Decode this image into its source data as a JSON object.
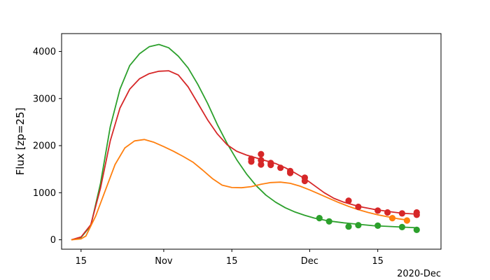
{
  "chart_data": {
    "type": "line",
    "title": "",
    "xlabel": "",
    "ylabel": "Flux [zp=25]",
    "x_offset_label": "2020-Dec",
    "xlim": [
      "2020-10-11",
      "2020-12-28"
    ],
    "ylim": [
      -200,
      4380
    ],
    "x_ticks": [
      {
        "date": "2020-10-15",
        "label": "15"
      },
      {
        "date": "2020-11-01",
        "label": "Nov"
      },
      {
        "date": "2020-11-15",
        "label": "15"
      },
      {
        "date": "2020-12-01",
        "label": "Dec"
      },
      {
        "date": "2020-12-15",
        "label": "15"
      }
    ],
    "y_ticks": [
      0,
      1000,
      2000,
      3000,
      4000
    ],
    "grid": false,
    "series": [
      {
        "color": "#2ca02c",
        "curve": [
          [
            "2020-10-13",
            0
          ],
          [
            "2020-10-15",
            50
          ],
          [
            "2020-10-17",
            300
          ],
          [
            "2020-10-19",
            1200
          ],
          [
            "2020-10-21",
            2400
          ],
          [
            "2020-10-23",
            3200
          ],
          [
            "2020-10-25",
            3700
          ],
          [
            "2020-10-27",
            3950
          ],
          [
            "2020-10-29",
            4100
          ],
          [
            "2020-10-31",
            4150
          ],
          [
            "2020-11-02",
            4080
          ],
          [
            "2020-11-04",
            3900
          ],
          [
            "2020-11-06",
            3650
          ],
          [
            "2020-11-08",
            3300
          ],
          [
            "2020-11-10",
            2900
          ],
          [
            "2020-11-12",
            2450
          ],
          [
            "2020-11-14",
            2050
          ],
          [
            "2020-11-16",
            1700
          ],
          [
            "2020-11-18",
            1400
          ],
          [
            "2020-11-20",
            1150
          ],
          [
            "2020-11-22",
            950
          ],
          [
            "2020-11-24",
            800
          ],
          [
            "2020-11-26",
            680
          ],
          [
            "2020-11-28",
            590
          ],
          [
            "2020-11-30",
            520
          ],
          [
            "2020-12-02",
            460
          ],
          [
            "2020-12-05",
            400
          ],
          [
            "2020-12-08",
            360
          ],
          [
            "2020-12-11",
            330
          ],
          [
            "2020-12-14",
            300
          ],
          [
            "2020-12-17",
            285
          ],
          [
            "2020-12-20",
            270
          ],
          [
            "2020-12-23",
            255
          ]
        ],
        "points": [
          [
            "2020-12-03",
            460
          ],
          [
            "2020-12-05",
            390
          ],
          [
            "2020-12-09",
            280
          ],
          [
            "2020-12-11",
            310
          ],
          [
            "2020-12-15",
            300
          ],
          [
            "2020-12-20",
            270
          ],
          [
            "2020-12-23",
            210
          ]
        ]
      },
      {
        "color": "#d62728",
        "curve": [
          [
            "2020-10-13",
            0
          ],
          [
            "2020-10-15",
            60
          ],
          [
            "2020-10-17",
            320
          ],
          [
            "2020-10-19",
            1100
          ],
          [
            "2020-10-21",
            2100
          ],
          [
            "2020-10-23",
            2800
          ],
          [
            "2020-10-25",
            3200
          ],
          [
            "2020-10-27",
            3420
          ],
          [
            "2020-10-29",
            3530
          ],
          [
            "2020-10-31",
            3580
          ],
          [
            "2020-11-02",
            3590
          ],
          [
            "2020-11-04",
            3500
          ],
          [
            "2020-11-06",
            3250
          ],
          [
            "2020-11-08",
            2900
          ],
          [
            "2020-11-10",
            2550
          ],
          [
            "2020-11-12",
            2250
          ],
          [
            "2020-11-14",
            2020
          ],
          [
            "2020-11-16",
            1880
          ],
          [
            "2020-11-18",
            1800
          ],
          [
            "2020-11-20",
            1740
          ],
          [
            "2020-11-22",
            1680
          ],
          [
            "2020-11-24",
            1620
          ],
          [
            "2020-11-26",
            1530
          ],
          [
            "2020-11-28",
            1420
          ],
          [
            "2020-11-30",
            1300
          ],
          [
            "2020-12-02",
            1150
          ],
          [
            "2020-12-04",
            1000
          ],
          [
            "2020-12-06",
            880
          ],
          [
            "2020-12-08",
            800
          ],
          [
            "2020-12-10",
            740
          ],
          [
            "2020-12-12",
            690
          ],
          [
            "2020-12-14",
            650
          ],
          [
            "2020-12-16",
            620
          ],
          [
            "2020-12-18",
            590
          ],
          [
            "2020-12-20",
            565
          ],
          [
            "2020-12-23",
            545
          ]
        ],
        "points": [
          [
            "2020-11-19",
            1720
          ],
          [
            "2020-11-19",
            1660
          ],
          [
            "2020-11-21",
            1820
          ],
          [
            "2020-11-21",
            1690
          ],
          [
            "2020-11-21",
            1600
          ],
          [
            "2020-11-23",
            1630
          ],
          [
            "2020-11-23",
            1590
          ],
          [
            "2020-11-25",
            1530
          ],
          [
            "2020-11-27",
            1460
          ],
          [
            "2020-11-27",
            1420
          ],
          [
            "2020-11-30",
            1320
          ],
          [
            "2020-11-30",
            1250
          ],
          [
            "2020-12-09",
            830
          ],
          [
            "2020-12-11",
            700
          ],
          [
            "2020-12-15",
            620
          ],
          [
            "2020-12-17",
            580
          ],
          [
            "2020-12-20",
            560
          ],
          [
            "2020-12-23",
            580
          ],
          [
            "2020-12-23",
            530
          ]
        ]
      },
      {
        "color": "#ff7f0e",
        "curve": [
          [
            "2020-10-13",
            0
          ],
          [
            "2020-10-15",
            20
          ],
          [
            "2020-10-16",
            80
          ],
          [
            "2020-10-18",
            500
          ],
          [
            "2020-10-20",
            1050
          ],
          [
            "2020-10-22",
            1600
          ],
          [
            "2020-10-24",
            1950
          ],
          [
            "2020-10-26",
            2100
          ],
          [
            "2020-10-28",
            2130
          ],
          [
            "2020-10-30",
            2070
          ],
          [
            "2020-11-01",
            1980
          ],
          [
            "2020-11-03",
            1880
          ],
          [
            "2020-11-05",
            1770
          ],
          [
            "2020-11-07",
            1650
          ],
          [
            "2020-11-09",
            1480
          ],
          [
            "2020-11-11",
            1300
          ],
          [
            "2020-11-13",
            1160
          ],
          [
            "2020-11-15",
            1110
          ],
          [
            "2020-11-17",
            1105
          ],
          [
            "2020-11-19",
            1130
          ],
          [
            "2020-11-21",
            1180
          ],
          [
            "2020-11-23",
            1215
          ],
          [
            "2020-11-25",
            1225
          ],
          [
            "2020-11-27",
            1200
          ],
          [
            "2020-11-29",
            1140
          ],
          [
            "2020-12-01",
            1060
          ],
          [
            "2020-12-03",
            970
          ],
          [
            "2020-12-05",
            880
          ],
          [
            "2020-12-07",
            790
          ],
          [
            "2020-12-09",
            710
          ],
          [
            "2020-12-11",
            640
          ],
          [
            "2020-12-13",
            580
          ],
          [
            "2020-12-15",
            530
          ],
          [
            "2020-12-17",
            490
          ],
          [
            "2020-12-19",
            450
          ],
          [
            "2020-12-21",
            420
          ]
        ],
        "points": [
          [
            "2020-12-18",
            460
          ],
          [
            "2020-12-21",
            410
          ]
        ]
      }
    ]
  }
}
